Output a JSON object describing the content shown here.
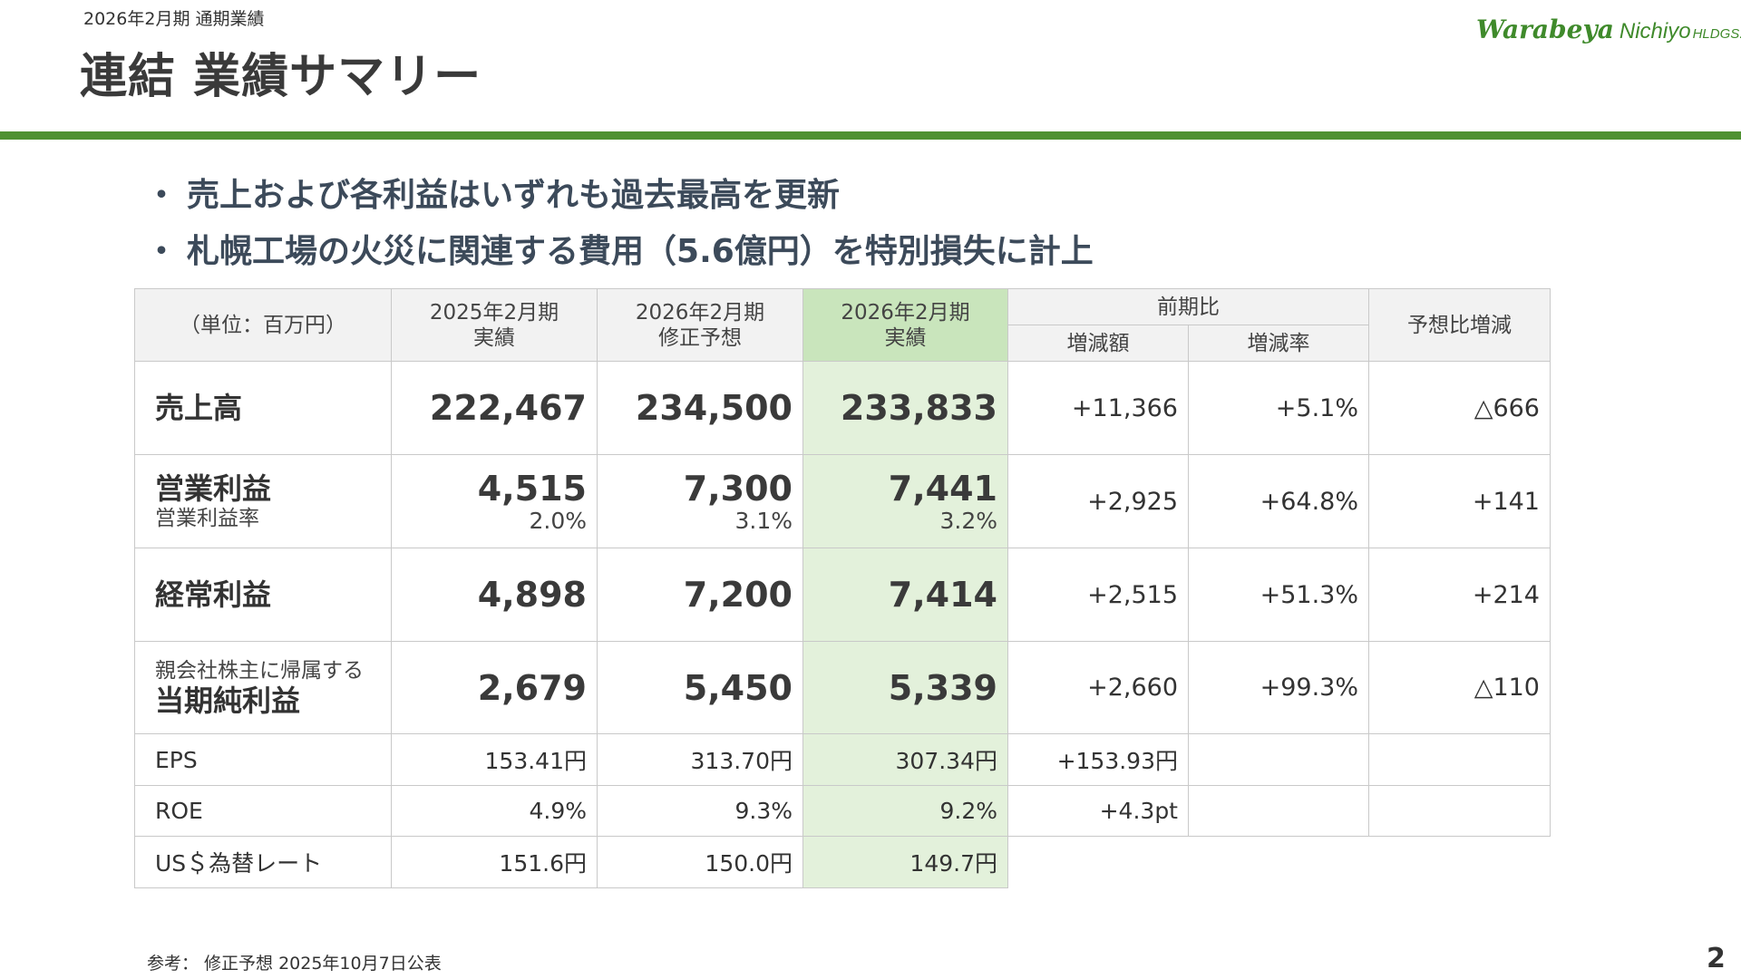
{
  "header": {
    "period_label": "2026年2月期 通期業績",
    "title": "連結 業績サマリー",
    "logo": {
      "brand": "Warabeya",
      "name": "Nichiyo",
      "suffix": "HLDGS."
    }
  },
  "bullets": [
    "売上および各利益はいずれも過去最高を更新",
    "札幌工場の火災に関連する費用（5.6億円）を特別損失に計上"
  ],
  "bullet_mark": "・",
  "table": {
    "unit_label": "（単位：百万円）",
    "col_fy25": {
      "line1": "2025年2月期",
      "line2": "実績"
    },
    "col_fy26_forecast": {
      "line1": "2026年2月期",
      "line2": "修正予想"
    },
    "col_fy26_actual": {
      "line1": "2026年2月期",
      "line2": "実績"
    },
    "col_yoy": "前期比",
    "col_yoy_amount": "増減額",
    "col_yoy_rate": "増減率",
    "col_vs_forecast": "予想比増減",
    "rows": {
      "sales": {
        "label": "売上高",
        "fy25": "222,467",
        "forecast": "234,500",
        "actual": "233,833",
        "diff": "+11,366",
        "rate": "+5.1%",
        "vs_forecast": "△666"
      },
      "op_income": {
        "label": "営業利益",
        "sublabel": "営業利益率",
        "fy25": "4,515",
        "fy25_margin": "2.0%",
        "forecast": "7,300",
        "forecast_margin": "3.1%",
        "actual": "7,441",
        "actual_margin": "3.2%",
        "diff": "+2,925",
        "rate": "+64.8%",
        "vs_forecast": "+141"
      },
      "ordinary_income": {
        "label": "経常利益",
        "fy25": "4,898",
        "forecast": "7,200",
        "actual": "7,414",
        "diff": "+2,515",
        "rate": "+51.3%",
        "vs_forecast": "+214"
      },
      "net_income": {
        "label_line1": "親会社株主に帰属する",
        "label_line2": "当期純利益",
        "fy25": "2,679",
        "forecast": "5,450",
        "actual": "5,339",
        "diff": "+2,660",
        "rate": "+99.3%",
        "vs_forecast": "△110"
      },
      "eps": {
        "label": "EPS",
        "fy25": "153.41円",
        "forecast": "313.70円",
        "actual": "307.34円",
        "diff": "+153.93円"
      },
      "roe": {
        "label": "ROE",
        "fy25": "4.9%",
        "forecast": "9.3%",
        "actual": "9.2%",
        "diff": "+4.3pt"
      },
      "fx": {
        "label": "US＄為替レート",
        "fy25": "151.6円",
        "forecast": "150.0円",
        "actual": "149.7円"
      }
    }
  },
  "footnote": "参考：  修正予想   2025年10月7日公表",
  "page_number": "2",
  "colors": {
    "accent_green": "#4f9132",
    "actual_header_bg": "#c9e5bc",
    "actual_cell_bg": "#e3f1db",
    "header_bg": "#f2f2f2"
  }
}
